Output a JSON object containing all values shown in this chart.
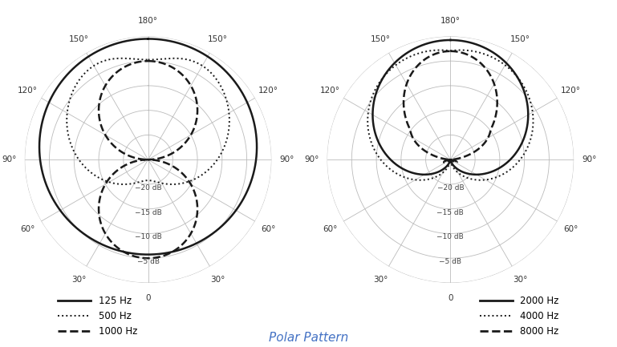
{
  "title": "Polar Pattern",
  "title_color": "#4472c4",
  "title_fontsize": 11,
  "background_color": "#ffffff",
  "grid_color": "#bbbbbb",
  "line_color": "#1a1a1a",
  "db_levels": [
    -20,
    -15,
    -10,
    -5
  ],
  "db_min": -25
}
